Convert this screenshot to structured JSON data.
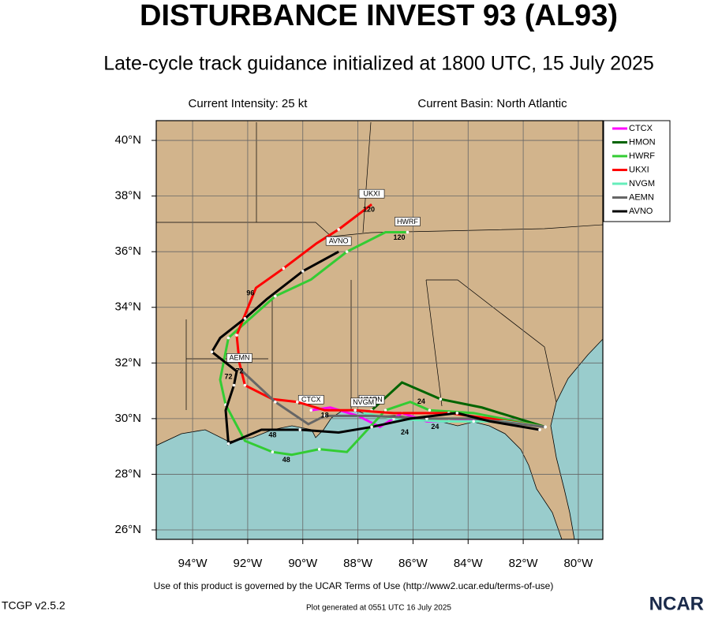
{
  "chart_data": {
    "type": "track-map",
    "title": "DISTURBANCE INVEST 93 (AL93)",
    "subtitle": "Late-cycle track guidance initialized at 1800 UTC, 15 July 2025",
    "intensity": "Current Intensity: 25 kt",
    "basin": "Current Basin: North Atlantic",
    "footer": "Use of this product is governed by the UCAR Terms of Use (http://www2.ucar.edu/terms-of-use)",
    "version": "TCGP v2.5.2",
    "generated": "Plot generated at 0551 UTC   16 July 2025",
    "logo": "NCAR",
    "xlim": [
      -95.32,
      -79.11
    ],
    "ylim": [
      25.66,
      40.71
    ],
    "xticks": [
      {
        "value": -94,
        "label": "94°W"
      },
      {
        "value": -92,
        "label": "92°W"
      },
      {
        "value": -90,
        "label": "90°W"
      },
      {
        "value": -88,
        "label": "88°W"
      },
      {
        "value": -86,
        "label": "86°W"
      },
      {
        "value": -84,
        "label": "84°W"
      },
      {
        "value": -82,
        "label": "82°W"
      },
      {
        "value": -80,
        "label": "80°W"
      }
    ],
    "yticks": [
      {
        "value": 26,
        "label": "26°N"
      },
      {
        "value": 28,
        "label": "28°N"
      },
      {
        "value": 30,
        "label": "30°N"
      },
      {
        "value": 32,
        "label": "32°N"
      },
      {
        "value": 34,
        "label": "34°N"
      },
      {
        "value": 36,
        "label": "36°N"
      },
      {
        "value": 38,
        "label": "38°N"
      },
      {
        "value": 40,
        "label": "40°N"
      }
    ],
    "grid": true,
    "series": [
      {
        "name": "CTCX",
        "color": "#ff00ff",
        "lon": [
          -81.2,
          -82.7,
          -84.7,
          -85.5,
          -86.4,
          -87.2,
          -88.0,
          -89.0,
          -89.7
        ],
        "lat": [
          29.7,
          30.0,
          29.9,
          29.9,
          30.2,
          29.7,
          30.1,
          30.4,
          30.3
        ]
      },
      {
        "name": "HMON",
        "color": "#006400",
        "lon": [
          -81.2,
          -83.5,
          -85.0,
          -86.4,
          -87.5
        ],
        "lat": [
          29.7,
          30.4,
          30.7,
          31.3,
          30.3
        ]
      },
      {
        "name": "HWRF",
        "color": "#33cc33",
        "lon": [
          -81.2,
          -83.8,
          -85.4,
          -86.1,
          -87.0,
          -88.4,
          -89.4,
          -90.4,
          -91.1,
          -92.1,
          -92.8,
          -93.0,
          -92.7,
          -91.8,
          -91.0,
          -89.7,
          -88.4,
          -87.0,
          -86.2
        ],
        "lat": [
          29.7,
          30.2,
          30.3,
          30.6,
          30.3,
          28.8,
          28.9,
          28.7,
          28.8,
          29.2,
          30.5,
          31.4,
          32.9,
          33.7,
          34.4,
          35.0,
          36.0,
          36.7,
          36.7
        ]
      },
      {
        "name": "UKXI",
        "color": "#ff0000",
        "lon": [
          -81.2,
          -83.2,
          -84.7,
          -86.7,
          -88.1,
          -89.2,
          -90.2,
          -91.1,
          -92.1,
          -92.3,
          -92.4,
          -91.7,
          -90.7,
          -89.5,
          -88.7,
          -87.5
        ],
        "lat": [
          29.7,
          30.0,
          30.2,
          30.2,
          30.3,
          30.3,
          30.6,
          30.7,
          31.2,
          32.0,
          33.0,
          34.7,
          35.4,
          36.3,
          36.8,
          37.7
        ]
      },
      {
        "name": "NVGM",
        "color": "#66eebb",
        "lon": [
          -81.2,
          -82.7,
          -83.8,
          -85.0,
          -86.7,
          -87.8
        ],
        "lat": [
          29.7,
          29.9,
          29.9,
          29.9,
          30.0,
          30.2
        ]
      },
      {
        "name": "AEMN",
        "color": "#666666",
        "lon": [
          -81.2,
          -83.8,
          -85.5,
          -87.5,
          -89.2,
          -89.8,
          -91.0,
          -92.3
        ],
        "lat": [
          29.7,
          30.0,
          30.0,
          30.1,
          30.1,
          29.8,
          30.6,
          31.8
        ]
      },
      {
        "name": "AVNO",
        "color": "#000000",
        "lon": [
          -81.4,
          -83.2,
          -84.4,
          -86.1,
          -87.5,
          -88.7,
          -90.1,
          -91.5,
          -92.7,
          -92.8,
          -92.5,
          -92.4,
          -93.3,
          -93.0,
          -92.1,
          -91.3,
          -90.0,
          -88.7
        ],
        "lat": [
          29.6,
          29.9,
          30.2,
          30.0,
          29.7,
          29.5,
          29.6,
          29.6,
          29.1,
          30.3,
          31.2,
          31.7,
          32.4,
          32.9,
          33.6,
          34.3,
          35.3,
          36.0
        ]
      }
    ],
    "hour_labels": [
      {
        "text": "120",
        "lon": -87.6,
        "lat": 37.5
      },
      {
        "text": "120",
        "lon": -86.5,
        "lat": 36.5
      },
      {
        "text": "96",
        "lon": -91.9,
        "lat": 34.5
      },
      {
        "text": "72",
        "lon": -92.3,
        "lat": 31.7
      },
      {
        "text": "72",
        "lon": -92.7,
        "lat": 31.5
      },
      {
        "text": "48",
        "lon": -90.6,
        "lat": 28.5
      },
      {
        "text": "48",
        "lon": -91.1,
        "lat": 29.4
      },
      {
        "text": "24",
        "lon": -86.3,
        "lat": 29.5
      },
      {
        "text": "24",
        "lon": -85.2,
        "lat": 29.7
      },
      {
        "text": "24",
        "lon": -85.7,
        "lat": 30.6
      },
      {
        "text": "18",
        "lon": -89.2,
        "lat": 30.1
      }
    ]
  }
}
